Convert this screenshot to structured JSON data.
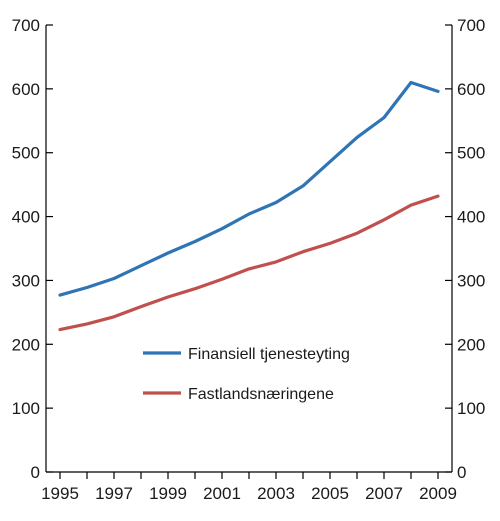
{
  "chart_data": {
    "type": "line",
    "x": [
      1995,
      1996,
      1997,
      1998,
      1999,
      2000,
      2001,
      2002,
      2003,
      2004,
      2005,
      2006,
      2007,
      2008,
      2009
    ],
    "x_tick_labels": [
      "1995",
      "1997",
      "1999",
      "2001",
      "2003",
      "2005",
      "2007",
      "2009"
    ],
    "y_tick_labels": [
      "0",
      "100",
      "200",
      "300",
      "400",
      "500",
      "600",
      "700"
    ],
    "ylim": [
      0,
      700
    ],
    "xlim": [
      1995,
      2009
    ],
    "grid": false,
    "legend_placement": "lower-center-right",
    "series": [
      {
        "name": "Finansiell tjenesteyting",
        "color": "#2f74b5",
        "values": [
          277,
          289,
          303,
          323,
          343,
          361,
          381,
          404,
          422,
          448,
          486,
          524,
          555,
          610,
          596
        ]
      },
      {
        "name": "Fastlandsnæringene",
        "color": "#c0504d",
        "values": [
          223,
          232,
          243,
          259,
          274,
          287,
          302,
          318,
          329,
          345,
          358,
          374,
          395,
          418,
          432
        ]
      }
    ]
  }
}
